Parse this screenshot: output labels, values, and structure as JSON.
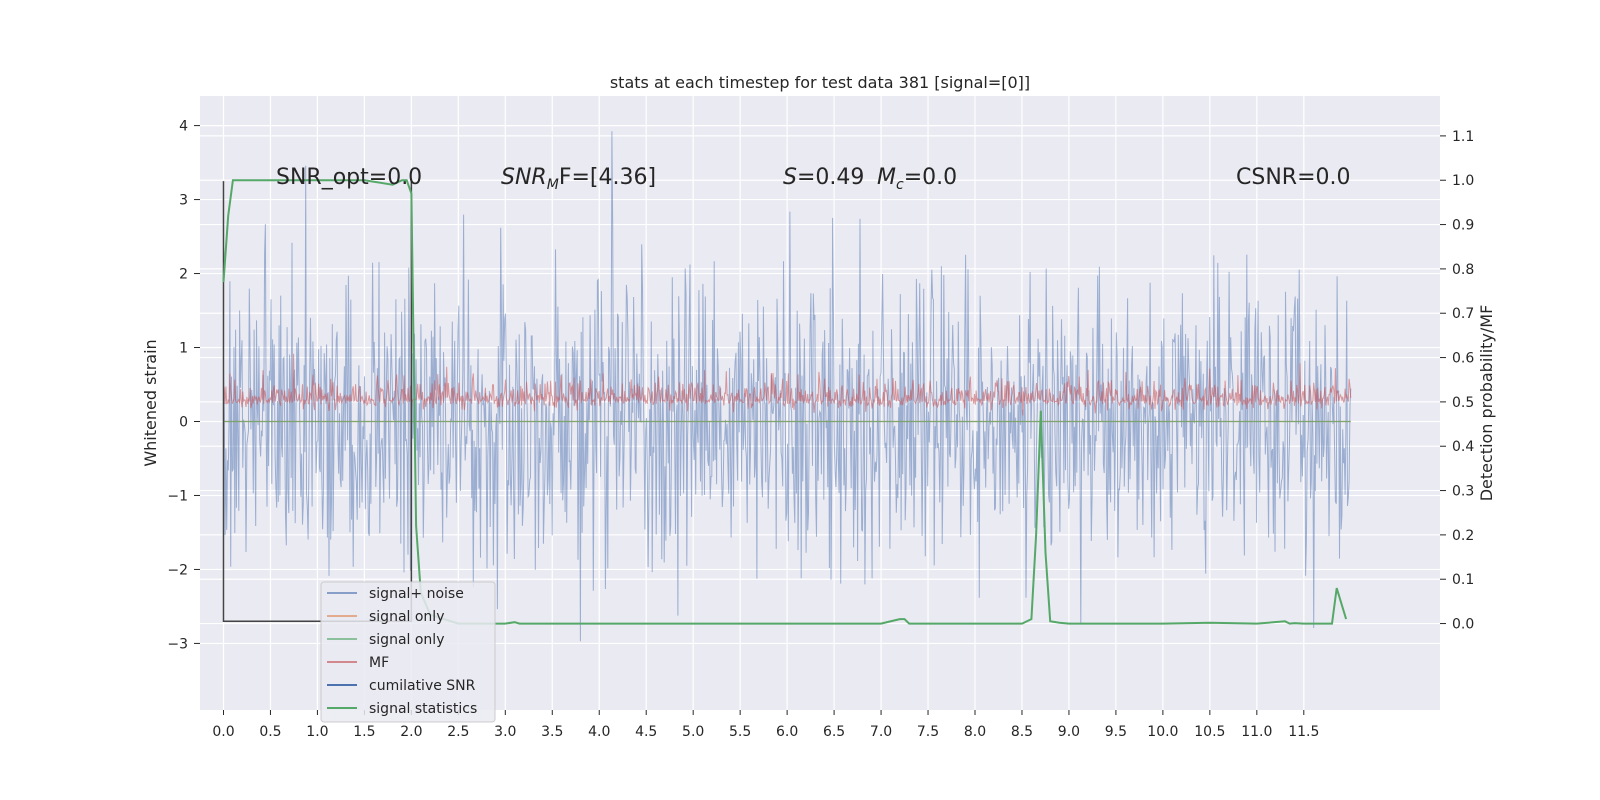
{
  "chart_data": {
    "type": "line",
    "title": "stats at each timestep for test data 381 [signal=[0]]",
    "xlabel": "",
    "ylabel": "Whitened strain",
    "y2label": "Detection probability/MF",
    "xlim": [
      -0.25,
      12.95
    ],
    "ylim": [
      -3.9,
      4.4
    ],
    "y2lim": [
      -0.195,
      1.19
    ],
    "x_ticks": [
      0.0,
      0.5,
      1.0,
      1.5,
      2.0,
      2.5,
      3.0,
      3.5,
      4.0,
      4.5,
      5.0,
      5.5,
      6.0,
      6.5,
      7.0,
      7.5,
      8.0,
      8.5,
      9.0,
      9.5,
      10.0,
      10.5,
      11.0,
      11.5
    ],
    "x_tick_labels": [
      "0.0",
      "0.5",
      "1.0",
      "1.5",
      "2.0",
      "2.5",
      "3.0",
      "3.5",
      "4.0",
      "4.5",
      "5.0",
      "5.5",
      "6.0",
      "6.5",
      "7.0",
      "7.5",
      "8.0",
      "8.5",
      "9.0",
      "9.5",
      "10.0",
      "10.5",
      "11.0",
      "11.5"
    ],
    "y_ticks": [
      -3,
      -2,
      -1,
      0,
      1,
      2,
      3,
      4
    ],
    "y_tick_labels": [
      "−3",
      "−2",
      "−1",
      "0",
      "1",
      "2",
      "3",
      "4"
    ],
    "y2_ticks": [
      0.0,
      0.1,
      0.2,
      0.3,
      0.4,
      0.5,
      0.6,
      0.7,
      0.8,
      0.9,
      1.0,
      1.1
    ],
    "y2_tick_labels": [
      "0.0",
      "0.1",
      "0.2",
      "0.3",
      "0.4",
      "0.5",
      "0.6",
      "0.7",
      "0.8",
      "0.9",
      "1.0",
      "1.1"
    ],
    "grid": true,
    "legend_position": "lower-left",
    "annotations": [
      {
        "id": "snr-opt",
        "text": "SNR_opt=0.0"
      },
      {
        "id": "snr-mf",
        "text": "SNR",
        "sub": "M",
        "rest": "F=[4.36]",
        "italic": true
      },
      {
        "id": "s-stat",
        "text": "S",
        "rest": "=0.49",
        "italic": true
      },
      {
        "id": "mc",
        "text": "M",
        "sub": "c",
        "rest": "=0.0",
        "italic": true
      },
      {
        "id": "csnr",
        "text": "CSNR=0.0"
      }
    ],
    "series": [
      {
        "name": "signal+ noise",
        "color": "#4c72b0",
        "axis": "left",
        "kind": "noise",
        "x_range": [
          0.0,
          12.0
        ],
        "amplitude": 1.0
      },
      {
        "name": "signal only",
        "color": "#dd8452",
        "axis": "left",
        "kind": "flat",
        "value": 0
      },
      {
        "name": "signal only",
        "color": "#55a868",
        "axis": "left",
        "kind": "flat",
        "value": 0
      },
      {
        "name": "MF",
        "color": "#c44e52",
        "axis": "left",
        "kind": "noise",
        "x_range": [
          0.0,
          12.0
        ],
        "center": 0.3,
        "amplitude": 0.18
      },
      {
        "name": "cumilative SNR",
        "color": "#4c72b0",
        "axis": "left",
        "kind": "box",
        "x": [
          0.0,
          2.0
        ],
        "y_high": 3.25,
        "y_low": -2.7
      },
      {
        "name": "signal statistics",
        "color": "#55a868",
        "axis": "right",
        "x": [
          0.0,
          0.05,
          0.1,
          0.2,
          0.5,
          1.0,
          1.5,
          1.8,
          1.9,
          1.95,
          2.0,
          2.05,
          2.1,
          2.2,
          2.5,
          3.0,
          3.1,
          3.15,
          4.0,
          5.0,
          6.0,
          7.0,
          7.2,
          7.25,
          7.3,
          7.4,
          8.0,
          8.5,
          8.6,
          8.65,
          8.7,
          8.75,
          8.8,
          8.9,
          9.0,
          9.5,
          10.0,
          10.5,
          11.0,
          11.3,
          11.35,
          11.4,
          11.5,
          11.8,
          11.85,
          11.95
        ],
        "y": [
          0.77,
          0.92,
          1.0,
          1.0,
          1.0,
          1.0,
          1.0,
          0.99,
          1.0,
          1.0,
          0.97,
          0.22,
          0.07,
          0.02,
          0.0,
          0.0,
          0.003,
          0.0,
          0.0,
          0.0,
          0.0,
          0.0,
          0.01,
          0.01,
          0.0,
          0.0,
          0.0,
          0.0,
          0.01,
          0.2,
          0.48,
          0.16,
          0.005,
          0.002,
          0.0,
          0.0,
          0.0,
          0.002,
          0.0,
          0.005,
          0.0,
          0.001,
          0.0,
          0.0,
          0.08,
          0.01
        ]
      }
    ]
  },
  "legend": [
    {
      "label": "signal+ noise",
      "color": "#4c72b0",
      "width": 1.2
    },
    {
      "label": "signal only",
      "color": "#dd8452",
      "width": 1.2
    },
    {
      "label": "signal only",
      "color": "#55a868",
      "width": 1.2
    },
    {
      "label": "MF",
      "color": "#c44e52",
      "width": 1.2
    },
    {
      "label": "cumilative SNR",
      "color": "#4c72b0",
      "width": 2
    },
    {
      "label": "signal statistics",
      "color": "#55a868",
      "width": 2
    }
  ]
}
